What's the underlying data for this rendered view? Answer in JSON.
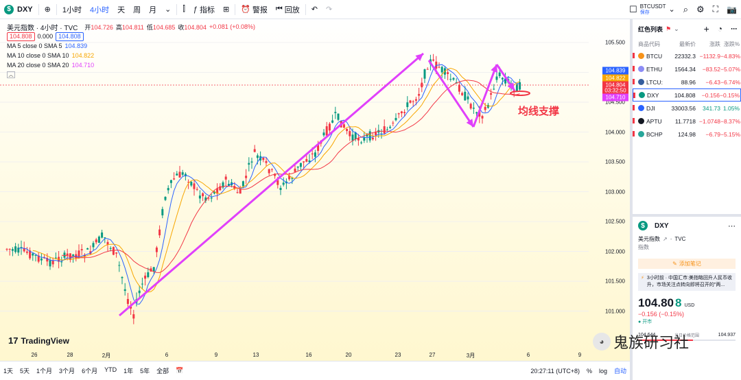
{
  "toolbar": {
    "symbol": "DXY",
    "interval_label": "1小时",
    "interval_active": "4小时",
    "interval_day": "天",
    "interval_week": "周",
    "interval_month": "月",
    "indicators": "指标",
    "alerts": "警报",
    "replay": "回放",
    "symbol_right": "BTCUSDT",
    "symbol_right_sub": "保存"
  },
  "legend": {
    "title": "美元指数 · 4小时 · TVC",
    "open_label": "开",
    "open": "104.726",
    "high_label": "高",
    "high": "104.811",
    "low_label": "低",
    "low": "104.685",
    "close_label": "收",
    "close": "104.804",
    "change": "+0.081 (+0.08%)",
    "bid": "104.808",
    "spread": "0.000",
    "ask": "104.808",
    "ma5": "MA 5 close 0 SMA 5",
    "ma5_val": "104.839",
    "ma10": "MA 10 close 0 SMA 10",
    "ma10_val": "104.822",
    "ma20": "MA 20 close 0 SMA 20",
    "ma20_val": "104.710"
  },
  "annotation": "均线支撑",
  "tv_logo": "TradingView",
  "yaxis": {
    "ticks": [
      "105.500",
      "105.000",
      "104.500",
      "104.000",
      "103.500",
      "103.000",
      "102.500",
      "102.000",
      "101.500",
      "101.000"
    ],
    "labels": [
      {
        "text": "104.839",
        "color": "#2962ff"
      },
      {
        "text": "104.822",
        "color": "#f7a600"
      },
      {
        "text": "104.804",
        "color": "#f23645"
      },
      {
        "text": "03:32:50",
        "color": "#f23645"
      },
      {
        "text": "104.710",
        "color": "#e040fb"
      }
    ]
  },
  "xaxis": [
    "26",
    "28",
    "2月",
    "6",
    "9",
    "13",
    "16",
    "20",
    "23",
    "27",
    "3月",
    "6",
    "9"
  ],
  "bottombar": {
    "ranges": [
      "1天",
      "5天",
      "1个月",
      "3个月",
      "6个月",
      "YTD",
      "1年",
      "5年",
      "全部"
    ],
    "time": "20:27:11 (UTC+8)",
    "pct": "%",
    "log": "log",
    "auto": "自动"
  },
  "watchlist": {
    "title": "红色列表",
    "cols": [
      "商品代码",
      "最新价",
      "涨跌",
      "涨跌%"
    ],
    "rows": [
      {
        "sym": "BTCU",
        "price": "22332.3",
        "chg": "−1132.9",
        "pct": "−4.83%",
        "dir": "dn",
        "color": "#f7931a"
      },
      {
        "sym": "ETHU",
        "price": "1564.34",
        "chg": "−83.52",
        "pct": "−5.07%",
        "dir": "dn",
        "color": "#8c8cf5"
      },
      {
        "sym": "LTCU:",
        "price": "88.96",
        "chg": "−6.43",
        "pct": "−6.74%",
        "dir": "dn",
        "color": "#345d9d"
      },
      {
        "sym": "DXY",
        "price": "104.808",
        "chg": "−0.156",
        "pct": "−0.15%",
        "dir": "dn",
        "color": "#089981"
      },
      {
        "sym": "DJI",
        "price": "33003.56",
        "chg": "341.73",
        "pct": "1.05%",
        "dir": "up",
        "color": "#2962ff"
      },
      {
        "sym": "APTU",
        "price": "11.7718",
        "chg": "−1.0748",
        "pct": "−8.37%",
        "dir": "dn",
        "color": "#131722"
      },
      {
        "sym": "BCHP",
        "price": "124.98",
        "chg": "−6.79",
        "pct": "−5.15%",
        "dir": "dn",
        "color": "#26a69a"
      }
    ]
  },
  "detail": {
    "symbol": "DXY",
    "name": "美元指数",
    "source": "TVC",
    "type": "指数",
    "note_btn": "添加笔记",
    "news_time": "3小时前 · 中国汇市:",
    "news": "美指略回升人民币收升，市场关注点转向即将召开的\"两...",
    "price_main": "104.80",
    "price_last": "8",
    "currency": "USD",
    "change": "−0.156 (−0.15%)",
    "status": "开市",
    "range_low": "104.644",
    "range_label": "当日价格范围",
    "range_high": "104.937"
  },
  "watermark": "鬼族研习社"
}
